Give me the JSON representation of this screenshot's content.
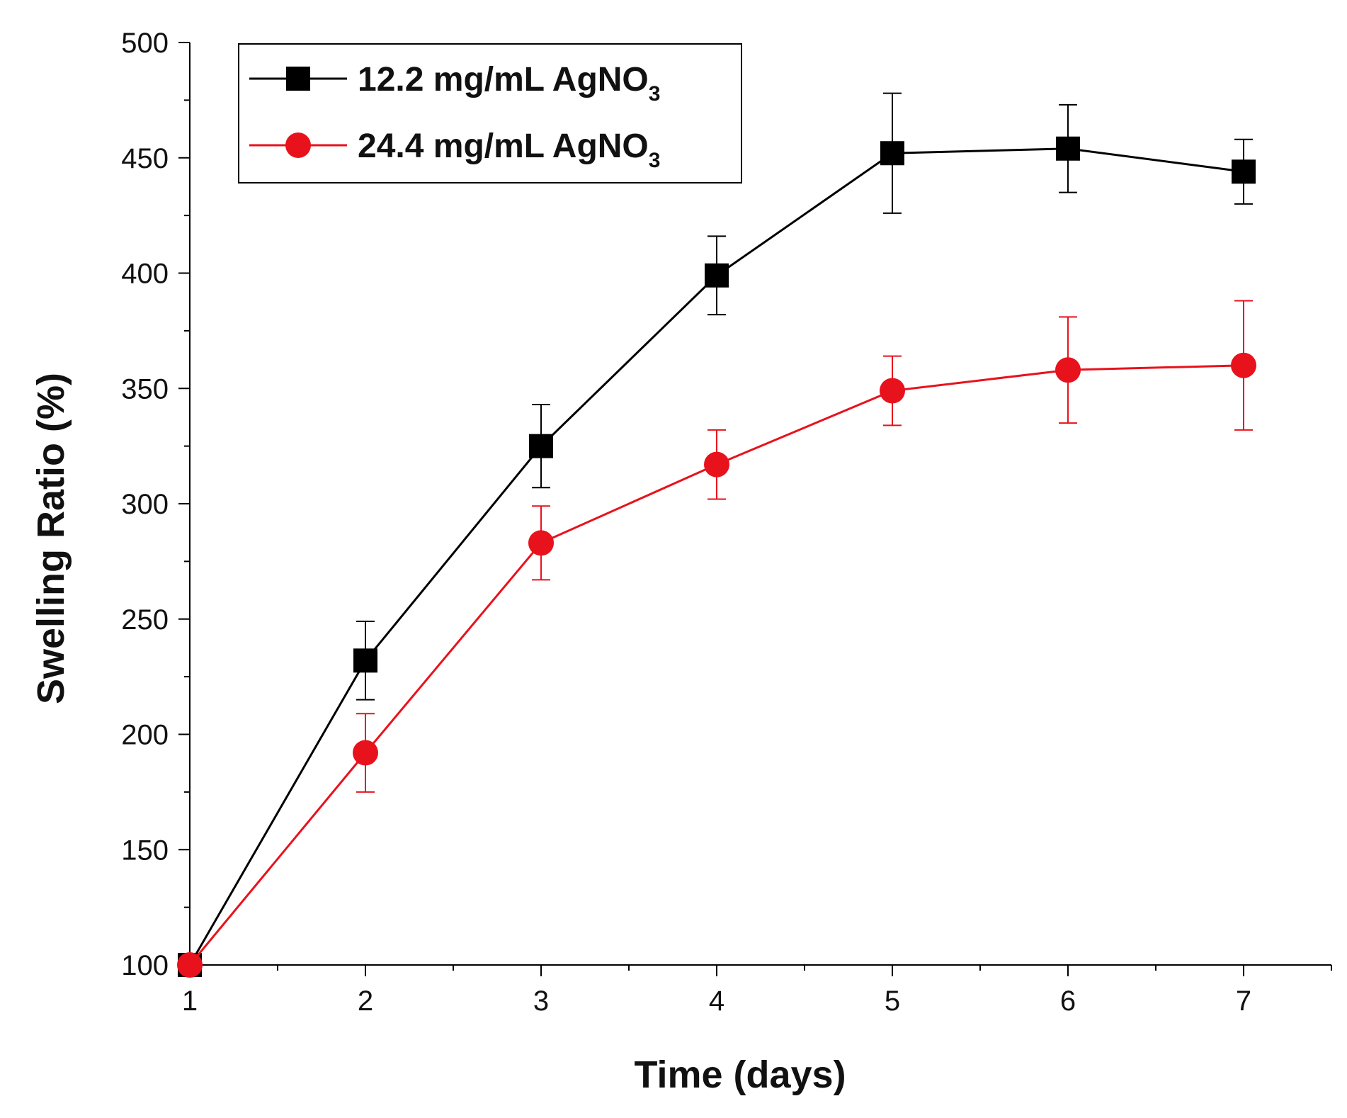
{
  "chart_data": {
    "type": "line",
    "title": "",
    "xlabel": "Time (days)",
    "ylabel": "Swelling Ratio (%)",
    "x": [
      1,
      2,
      3,
      4,
      5,
      6,
      7
    ],
    "xlim": [
      1,
      7.5
    ],
    "ylim": [
      100,
      500
    ],
    "xticks": [
      1,
      2,
      3,
      4,
      5,
      6,
      7
    ],
    "yticks": [
      100,
      150,
      200,
      250,
      300,
      350,
      400,
      450,
      500
    ],
    "legend_position": "top-left",
    "grid": false,
    "series": [
      {
        "name": "12.2 mg/mL AgNO",
        "name_subscript": "3",
        "color": "#000000",
        "marker": "square",
        "values": [
          100,
          232,
          325,
          399,
          452,
          454,
          444
        ],
        "errors": [
          0,
          17,
          18,
          17,
          26,
          19,
          14
        ]
      },
      {
        "name": "24.4 mg/mL AgNO",
        "name_subscript": "3",
        "color": "#e8121c",
        "marker": "circle",
        "values": [
          100,
          192,
          283,
          317,
          349,
          358,
          360
        ],
        "errors": [
          0,
          17,
          16,
          15,
          15,
          23,
          28
        ]
      }
    ]
  }
}
